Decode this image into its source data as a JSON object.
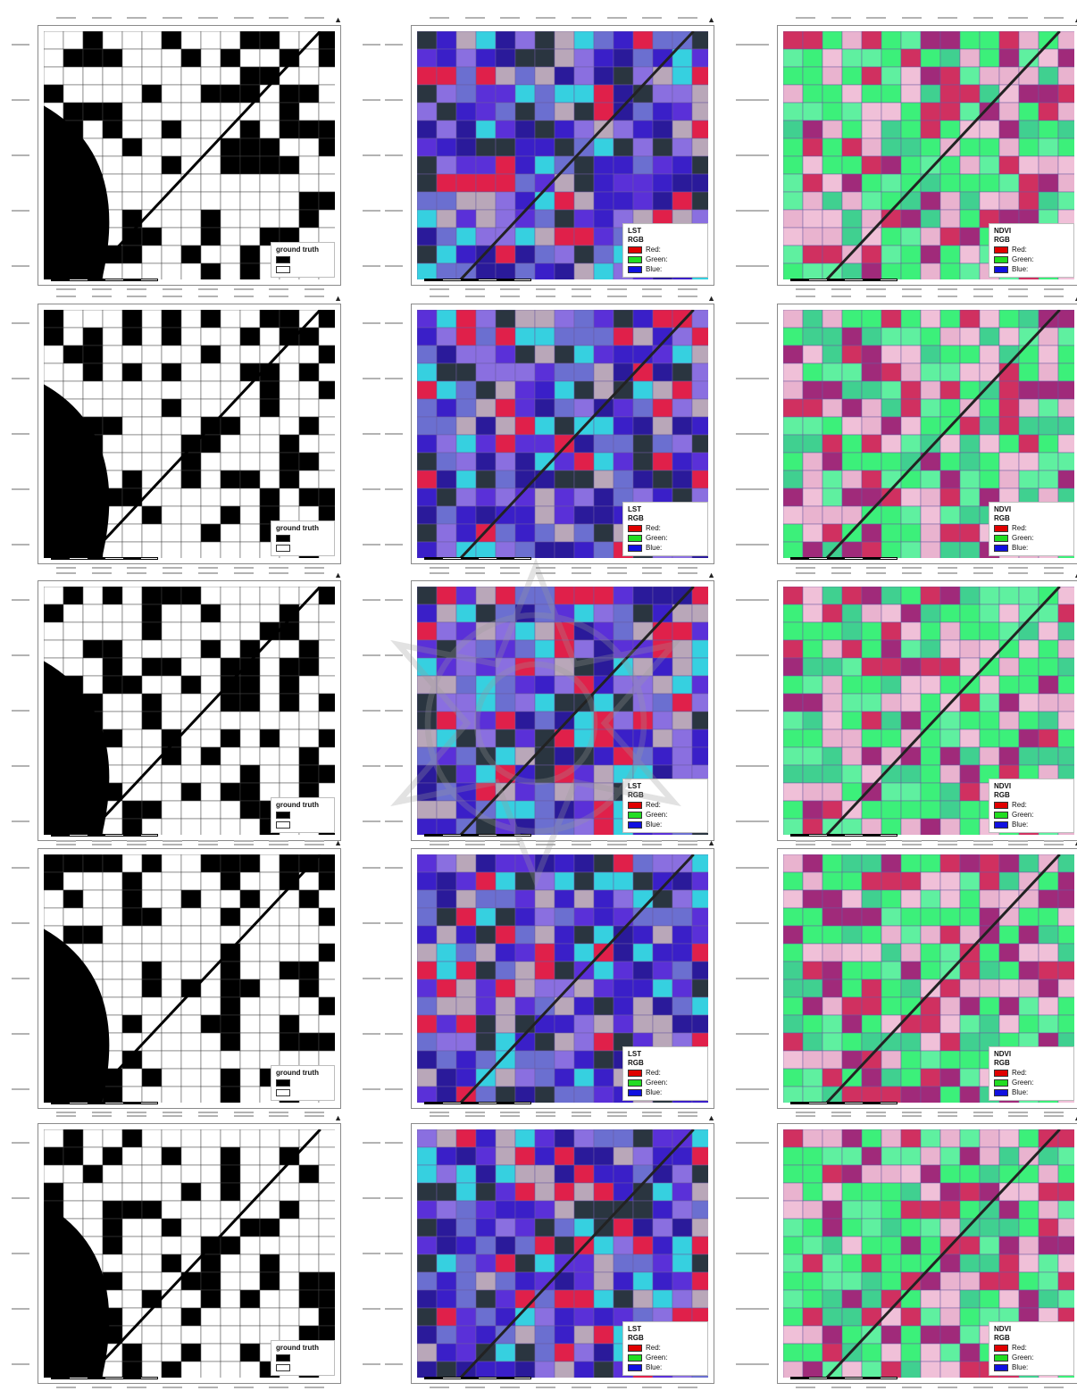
{
  "rows": [
    {
      "ground_truth": {
        "legend_title": "ground truth",
        "entries": [
          "",
          ""
        ]
      },
      "lst": {
        "legend_title": "LST",
        "legend_subtitle": "RGB",
        "entries": [
          {
            "label": "Red:",
            "value": ""
          },
          {
            "label": "Green:",
            "value": ""
          },
          {
            "label": "Blue:",
            "value": ""
          }
        ]
      },
      "ndvi": {
        "legend_title": "NDVI",
        "legend_subtitle": "RGB",
        "entries": [
          {
            "label": "Red:",
            "value": ""
          },
          {
            "label": "Green:",
            "value": ""
          },
          {
            "label": "Blue:",
            "value": ""
          }
        ]
      }
    },
    {
      "ground_truth": {
        "legend_title": "ground truth",
        "entries": [
          "",
          ""
        ]
      },
      "lst": {
        "legend_title": "LST",
        "legend_subtitle": "RGB",
        "entries": [
          {
            "label": "Red:",
            "value": ""
          },
          {
            "label": "Green:",
            "value": ""
          },
          {
            "label": "Blue:",
            "value": ""
          }
        ]
      },
      "ndvi": {
        "legend_title": "NDVI",
        "legend_subtitle": "RGB",
        "entries": [
          {
            "label": "Red:",
            "value": ""
          },
          {
            "label": "Green:",
            "value": ""
          },
          {
            "label": "Blue:",
            "value": ""
          }
        ]
      }
    },
    {
      "ground_truth": {
        "legend_title": "ground truth",
        "entries": [
          "",
          ""
        ]
      },
      "lst": {
        "legend_title": "LST",
        "legend_subtitle": "RGB",
        "entries": [
          {
            "label": "Red:",
            "value": ""
          },
          {
            "label": "Green:",
            "value": ""
          },
          {
            "label": "Blue:",
            "value": ""
          }
        ]
      },
      "ndvi": {
        "legend_title": "NDVI",
        "legend_subtitle": "RGB",
        "entries": [
          {
            "label": "Red:",
            "value": ""
          },
          {
            "label": "Green:",
            "value": ""
          },
          {
            "label": "Blue:",
            "value": ""
          }
        ]
      }
    },
    {
      "ground_truth": {
        "legend_title": "ground truth",
        "entries": [
          "",
          ""
        ]
      },
      "lst": {
        "legend_title": "LST",
        "legend_subtitle": "RGB",
        "entries": [
          {
            "label": "Red:",
            "value": ""
          },
          {
            "label": "Green:",
            "value": ""
          },
          {
            "label": "Blue:",
            "value": ""
          }
        ]
      },
      "ndvi": {
        "legend_title": "NDVI",
        "legend_subtitle": "RGB",
        "entries": [
          {
            "label": "Red:",
            "value": ""
          },
          {
            "label": "Green:",
            "value": ""
          },
          {
            "label": "Blue:",
            "value": ""
          }
        ]
      }
    },
    {
      "ground_truth": {
        "legend_title": "ground truth",
        "entries": [
          "",
          ""
        ]
      },
      "lst": {
        "legend_title": "LST",
        "legend_subtitle": "RGB",
        "entries": [
          {
            "label": "Red:",
            "value": ""
          },
          {
            "label": "Green:",
            "value": ""
          },
          {
            "label": "Blue:",
            "value": ""
          }
        ]
      },
      "ndvi": {
        "legend_title": "NDVI",
        "legend_subtitle": "RGB",
        "entries": [
          {
            "label": "Red:",
            "value": ""
          },
          {
            "label": "Green:",
            "value": ""
          },
          {
            "label": "Blue:",
            "value": ""
          }
        ]
      }
    }
  ],
  "north_arrow": "N",
  "colors": {
    "gt_black": "#000000",
    "gt_white": "#ffffff",
    "lst_blue": "#3a1fc8",
    "lst_purple": "#5a30d8",
    "lst_red": "#e0204a",
    "ndvi_green": "#3cf07a",
    "ndvi_pink": "#e9b3cf",
    "ndvi_magenta": "#a02a7a"
  },
  "icons": {
    "north": "north-arrow-icon",
    "scale": "scale-bar-icon",
    "watermark": "watermark-emblem-icon"
  }
}
